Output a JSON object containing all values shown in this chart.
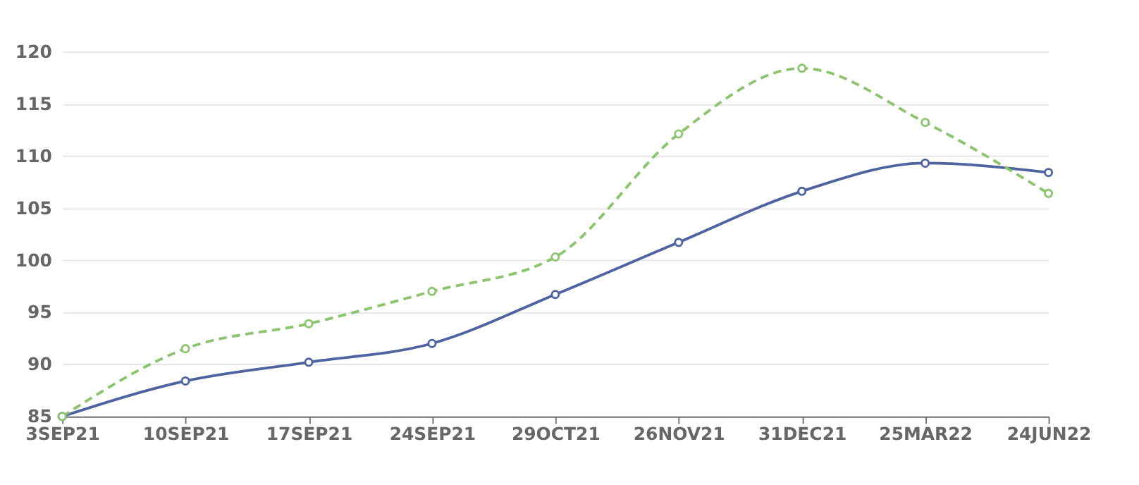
{
  "chart_data": {
    "type": "line",
    "categories": [
      "3SEP21",
      "10SEP21",
      "17SEP21",
      "24SEP21",
      "29OCT21",
      "26NOV21",
      "31DEC21",
      "25MAR22",
      "24JUN22"
    ],
    "series": [
      {
        "color": "#4f63a0",
        "values": [
          85.0,
          88.4,
          90.2,
          92.0,
          96.7,
          101.7,
          106.6,
          109.3,
          108.4
        ],
        "line_style": "solid"
      },
      {
        "color": "#8cc46e",
        "values": [
          85.0,
          91.5,
          93.9,
          97.0,
          100.3,
          112.1,
          118.4,
          113.2,
          106.4
        ],
        "line_style": "dashed"
      }
    ],
    "ylim": [
      85,
      120
    ],
    "yticks": [
      85,
      90,
      95,
      100,
      105,
      110,
      115,
      120
    ],
    "grid": "y",
    "marker": "circle"
  }
}
